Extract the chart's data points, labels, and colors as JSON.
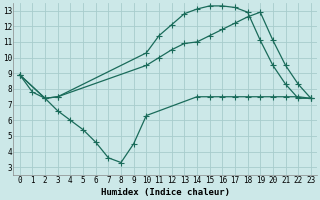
{
  "xlabel": "Humidex (Indice chaleur)",
  "bg_color": "#cce8e8",
  "grid_color": "#a8cccc",
  "line_color": "#1a6b5a",
  "xlim": [
    -0.5,
    23.5
  ],
  "ylim": [
    2.5,
    13.5
  ],
  "xticks": [
    0,
    1,
    2,
    3,
    4,
    5,
    6,
    7,
    8,
    9,
    10,
    11,
    12,
    13,
    14,
    15,
    16,
    17,
    18,
    19,
    20,
    21,
    22,
    23
  ],
  "yticks": [
    3,
    4,
    5,
    6,
    7,
    8,
    9,
    10,
    11,
    12,
    13
  ],
  "line1_x": [
    0,
    1,
    2,
    3,
    4,
    5,
    6,
    7,
    8,
    9,
    10,
    14,
    15,
    16,
    17,
    18,
    19,
    20,
    21,
    22,
    23
  ],
  "line1_y": [
    8.9,
    7.8,
    7.4,
    6.6,
    6.0,
    5.4,
    4.6,
    3.6,
    3.3,
    4.5,
    6.3,
    7.5,
    7.5,
    7.5,
    7.5,
    7.5,
    7.5,
    7.5,
    7.5,
    7.5,
    7.4
  ],
  "line2_x": [
    0,
    2,
    3,
    10,
    11,
    12,
    13,
    14,
    15,
    16,
    17,
    18,
    19,
    20,
    21,
    22,
    23
  ],
  "line2_y": [
    8.9,
    7.4,
    7.5,
    9.5,
    10.0,
    10.5,
    10.9,
    11.0,
    11.4,
    11.8,
    12.2,
    12.6,
    12.9,
    11.1,
    9.5,
    8.3,
    7.4
  ],
  "line3_x": [
    0,
    2,
    3,
    10,
    11,
    12,
    13,
    14,
    15,
    16,
    17,
    18,
    19,
    20,
    21,
    22,
    23
  ],
  "line3_y": [
    8.9,
    7.4,
    7.5,
    10.3,
    11.4,
    12.1,
    12.8,
    13.1,
    13.3,
    13.3,
    13.2,
    12.9,
    11.1,
    9.5,
    8.3,
    7.4,
    7.4
  ]
}
